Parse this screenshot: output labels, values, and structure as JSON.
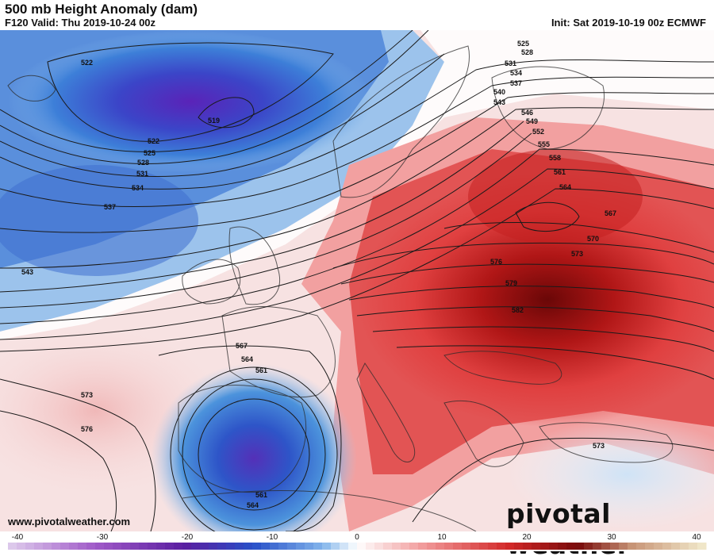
{
  "header": {
    "title": "500 mb Height Anomaly (dam)",
    "valid": "F120 Valid: Thu 2019-10-24 00z",
    "init": "Init: Sat 2019-10-19 00z ECMWF"
  },
  "footer": {
    "website": "www.pivotalweather.com",
    "brand": "pivotal weather"
  },
  "colorbar": {
    "ticks": [
      "-40",
      "-30",
      "-20",
      "-10",
      "0",
      "10",
      "20",
      "30",
      "40"
    ]
  },
  "contours": {
    "labels": [
      "522",
      "519",
      "522",
      "525",
      "528",
      "531",
      "534",
      "537",
      "540",
      "543",
      "546",
      "549",
      "552",
      "555",
      "558",
      "561",
      "564",
      "567",
      "570",
      "573",
      "576",
      "579",
      "582",
      "522",
      "525",
      "528",
      "531",
      "534",
      "537",
      "543",
      "567",
      "564",
      "561",
      "573",
      "576",
      "561",
      "564",
      "573"
    ]
  },
  "colors": {
    "negative_deep": "#5b2bb0",
    "negative": "#2a56c6",
    "neutral": "#ffffff",
    "positive": "#e03a3a",
    "positive_deep": "#7a0a0a"
  }
}
